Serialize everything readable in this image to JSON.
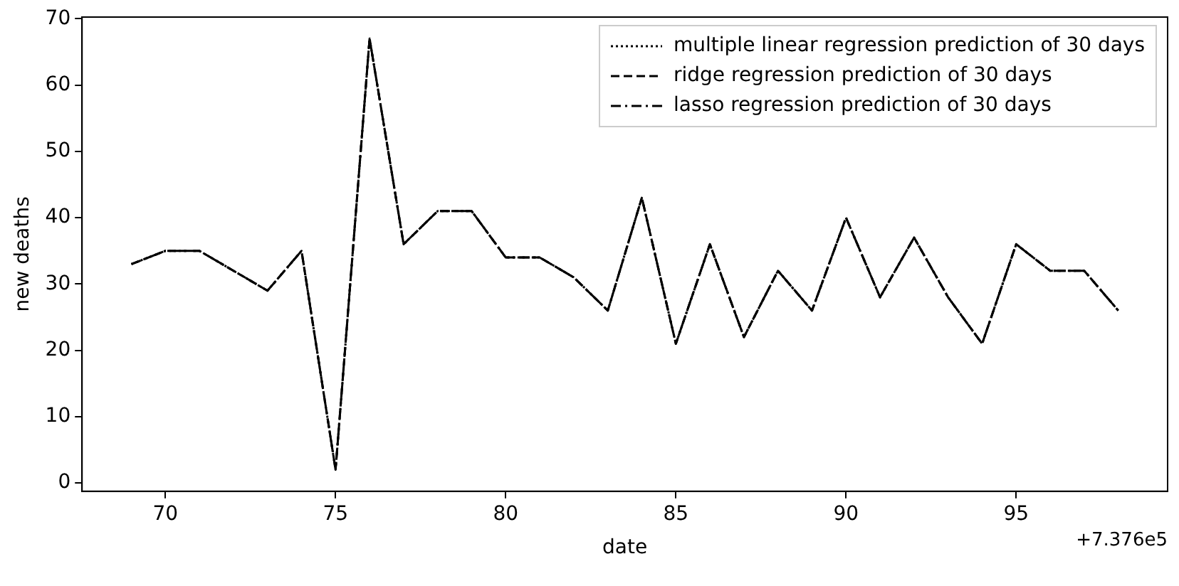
{
  "chart_data": {
    "type": "line",
    "xlabel": "date",
    "ylabel": "new deaths",
    "x": [
      69,
      70,
      71,
      72,
      73,
      74,
      75,
      76,
      77,
      78,
      79,
      80,
      81,
      82,
      83,
      84,
      85,
      86,
      87,
      88,
      89,
      90,
      91,
      92,
      93,
      94,
      95,
      96,
      97,
      98
    ],
    "series": [
      {
        "name": "multiple linear regression prediction of 30 days",
        "color": "#000000",
        "line_style": "dotted",
        "values": [
          33,
          35,
          35,
          32,
          29,
          35,
          2,
          67,
          36,
          41,
          41,
          34,
          34,
          31,
          26,
          43,
          21,
          36,
          22,
          32,
          26,
          40,
          28,
          37,
          28,
          21,
          36,
          32,
          32,
          26
        ]
      },
      {
        "name": "ridge regression prediction of 30 days",
        "color": "#000000",
        "line_style": "dashed",
        "values": [
          33,
          35,
          35,
          32,
          29,
          35,
          2,
          67,
          36,
          41,
          41,
          34,
          34,
          31,
          26,
          43,
          21,
          36,
          22,
          32,
          26,
          40,
          28,
          37,
          28,
          21,
          36,
          32,
          32,
          26
        ]
      },
      {
        "name": "lasso regression prediction of 30 days",
        "color": "#000000",
        "line_style": "dashdot",
        "values": [
          33,
          35,
          35,
          32,
          29,
          35,
          2,
          67,
          36,
          41,
          41,
          34,
          34,
          31,
          26,
          43,
          21,
          36,
          22,
          32,
          26,
          40,
          28,
          37,
          28,
          21,
          36,
          32,
          32,
          26
        ]
      }
    ],
    "xlim": [
      67.55,
      99.45
    ],
    "xticks": [
      70,
      75,
      80,
      85,
      90,
      95
    ],
    "ylim": [
      -1.25,
      70.25
    ],
    "yticks": [
      0,
      10,
      20,
      30,
      40,
      50,
      60,
      70
    ],
    "grid": false,
    "legend": "top right",
    "marker": "none",
    "annotations": [
      "+7.376e5"
    ]
  }
}
